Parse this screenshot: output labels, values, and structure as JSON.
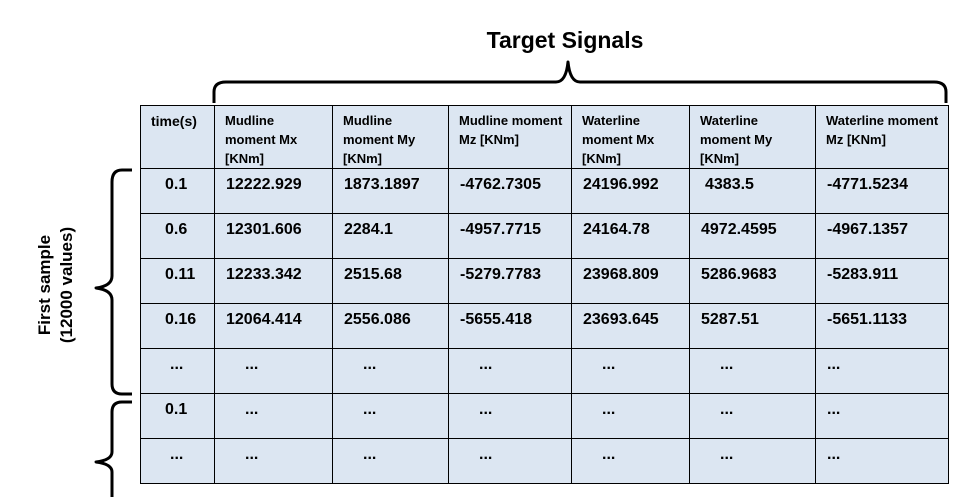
{
  "diagram": {
    "title": "Target Signals",
    "side_label_line1": "First sample",
    "side_label_line2": "(12000 values)"
  },
  "table": {
    "headers": [
      "time(s)",
      "Mudline moment Mx [KNm]",
      "Mudline moment My [KNm]",
      "Mudline moment Mz [KNm]",
      "Waterline moment Mx [KNm]",
      "Waterline moment My [KNm]",
      "Waterline moment Mz [KNm]"
    ],
    "rows": [
      [
        "0.1",
        "12222.929",
        "1873.1897",
        "-4762.7305",
        "24196.992",
        "4383.5",
        "-4771.5234"
      ],
      [
        "0.6",
        "12301.606",
        "2284.1",
        "-4957.7715",
        "24164.78",
        "4972.4595",
        "-4967.1357"
      ],
      [
        "0.11",
        "12233.342",
        "2515.68",
        "-5279.7783",
        "23968.809",
        "5286.9683",
        "-5283.911"
      ],
      [
        "0.16",
        "12064.414",
        "2556.086",
        "-5655.418",
        "23693.645",
        "5287.51",
        "-5651.1133"
      ],
      [
        "...",
        "...",
        "...",
        "...",
        "...",
        "...",
        "..."
      ],
      [
        "0.1",
        "...",
        "...",
        "...",
        "...",
        "...",
        "..."
      ],
      [
        "...",
        "...",
        "...",
        "...",
        "...",
        "...",
        "..."
      ]
    ]
  }
}
